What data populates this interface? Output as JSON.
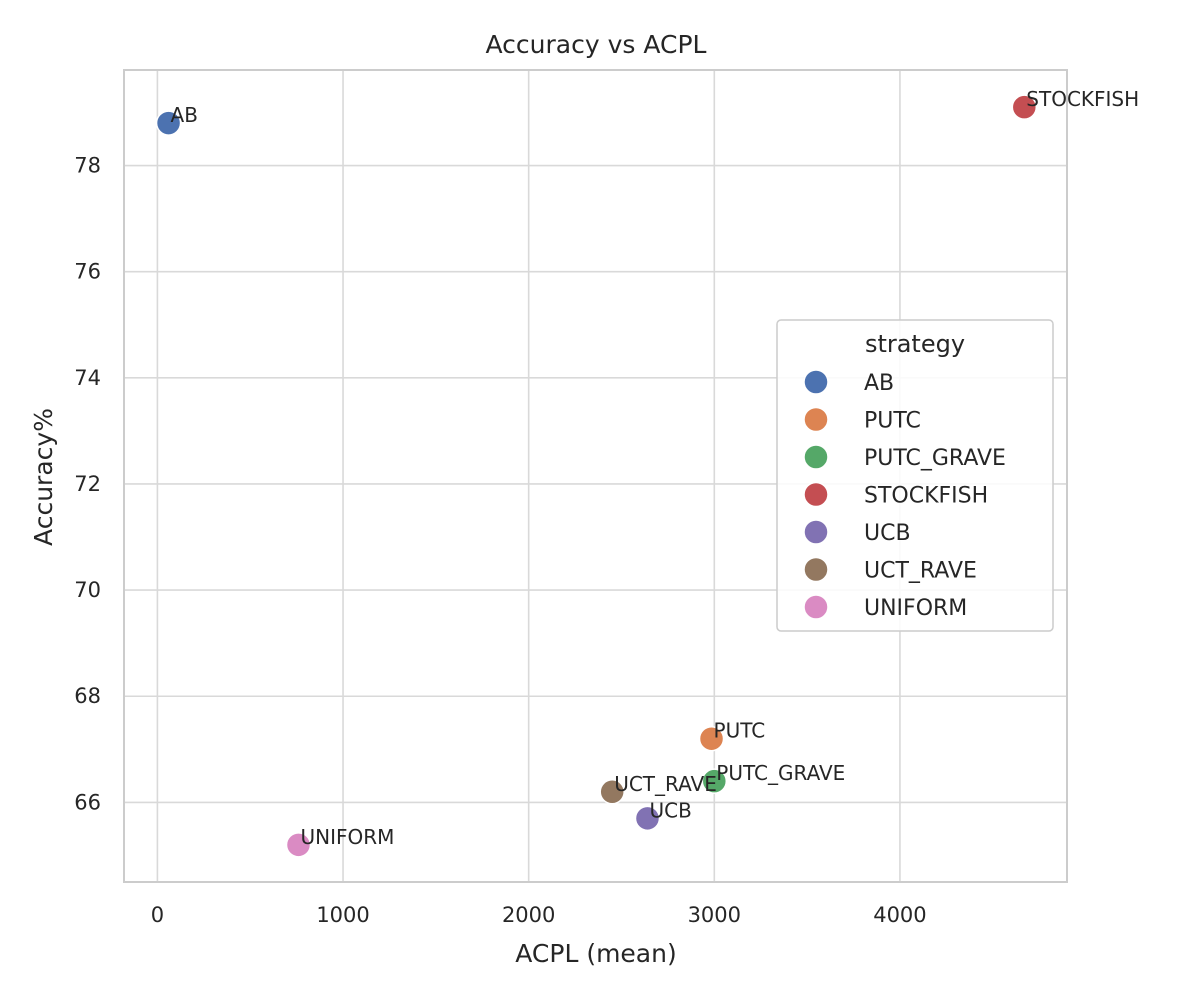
{
  "chart_data": {
    "type": "scatter",
    "title": "Accuracy vs ACPL",
    "xlabel": "ACPL (mean)",
    "ylabel": "Accuracy%",
    "xlim": [
      -180,
      4900
    ],
    "ylim": [
      64.5,
      79.8
    ],
    "xticks": [
      0,
      1000,
      2000,
      3000,
      4000
    ],
    "yticks": [
      66,
      68,
      70,
      72,
      74,
      76,
      78
    ],
    "grid": true,
    "legend": {
      "title": "strategy",
      "placement": "center-right"
    },
    "points": [
      {
        "label": "AB",
        "x": 60,
        "y": 78.8,
        "color": "#4c72b0"
      },
      {
        "label": "PUTC",
        "x": 2985,
        "y": 67.2,
        "color": "#dd8452"
      },
      {
        "label": "PUTC_GRAVE",
        "x": 3000,
        "y": 66.4,
        "color": "#55a868"
      },
      {
        "label": "STOCKFISH",
        "x": 4670,
        "y": 79.1,
        "color": "#c44e52"
      },
      {
        "label": "UCB",
        "x": 2640,
        "y": 65.7,
        "color": "#8172b3"
      },
      {
        "label": "UCT_RAVE",
        "x": 2450,
        "y": 66.2,
        "color": "#937860"
      },
      {
        "label": "UNIFORM",
        "x": 760,
        "y": 65.2,
        "color": "#da8bc3"
      }
    ]
  }
}
